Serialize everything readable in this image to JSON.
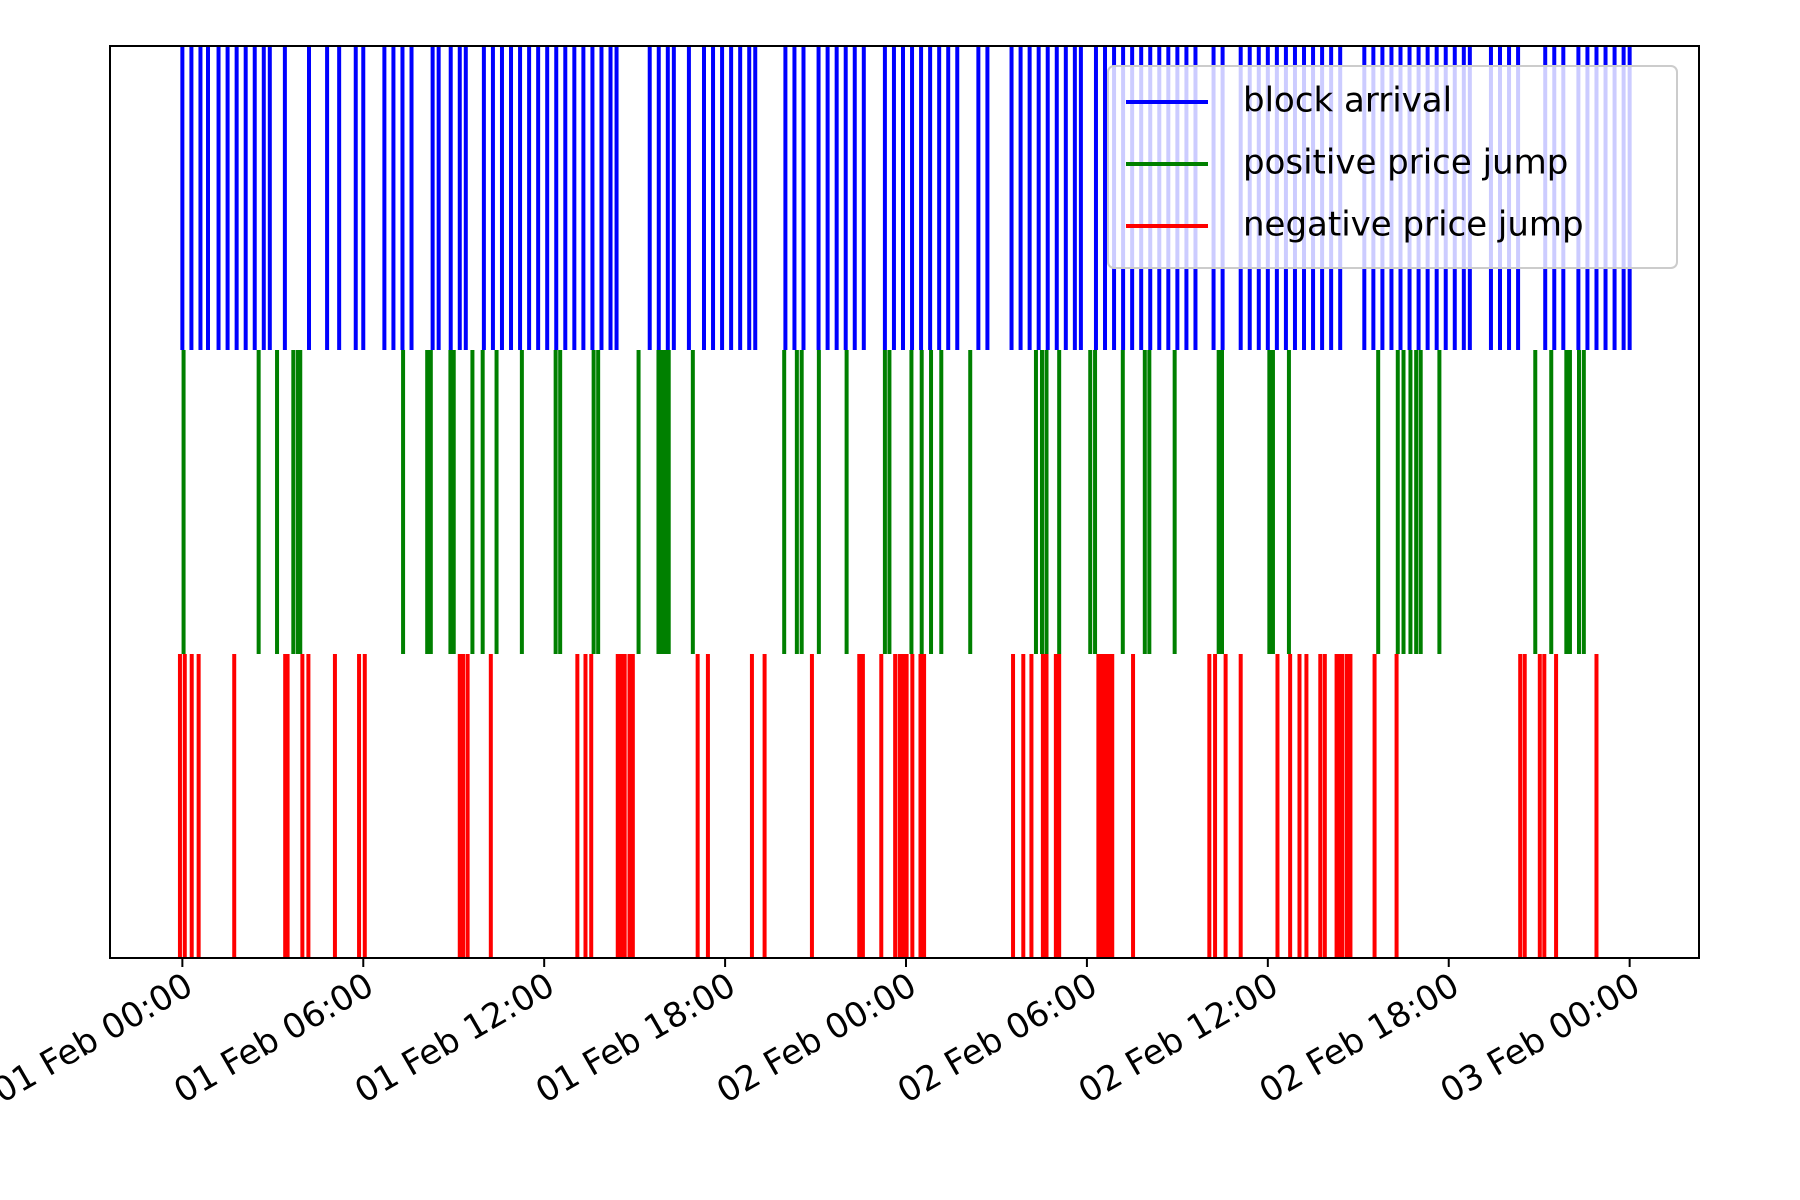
{
  "chart_data": {
    "type": "eventplot",
    "xlim": [
      -2.4,
      50.3
    ],
    "xticks": [
      {
        "value": 0,
        "label": "01 Feb 00:00"
      },
      {
        "value": 6,
        "label": "01 Feb 06:00"
      },
      {
        "value": 12,
        "label": "01 Feb 12:00"
      },
      {
        "value": 18,
        "label": "01 Feb 18:00"
      },
      {
        "value": 24,
        "label": "02 Feb 00:00"
      },
      {
        "value": 30,
        "label": "02 Feb 06:00"
      },
      {
        "value": 36,
        "label": "02 Feb 12:00"
      },
      {
        "value": 42,
        "label": "02 Feb 18:00"
      },
      {
        "value": 48,
        "label": "03 Feb 00:00"
      }
    ],
    "legend": "upper right",
    "series": [
      {
        "name": "block arrival",
        "color": "#0000ff",
        "values": [
          0,
          0.3,
          0.6,
          0.85,
          1.2,
          1.5,
          1.8,
          2.1,
          2.4,
          2.7,
          2.9,
          3.4,
          4.2,
          4.8,
          5.2,
          5.75,
          6.0,
          6.7,
          7.0,
          7.3,
          7.6,
          8.3,
          8.5,
          8.9,
          9.2,
          9.4,
          10.0,
          10.3,
          10.6,
          10.9,
          11.2,
          11.5,
          11.8,
          12.1,
          12.4,
          12.7,
          13.0,
          13.3,
          13.6,
          13.9,
          14.2,
          14.4,
          15.5,
          15.8,
          16.1,
          16.3,
          16.8,
          17.3,
          17.6,
          17.9,
          18.2,
          18.5,
          18.8,
          19.0,
          20.0,
          20.3,
          20.6,
          21.1,
          21.4,
          21.7,
          22.0,
          22.3,
          22.6,
          23.3,
          23.6,
          23.9,
          24.2,
          24.5,
          24.8,
          25.1,
          25.4,
          25.7,
          26.4,
          26.7,
          27.5,
          27.8,
          28.1,
          28.4,
          28.7,
          29.0,
          29.3,
          29.6,
          29.8,
          30.3,
          30.6,
          30.9,
          31.2,
          31.5,
          31.8,
          32.1,
          32.4,
          32.7,
          33.0,
          33.3,
          33.6,
          34.2,
          34.5,
          35.1,
          35.4,
          35.7,
          36.0,
          36.3,
          36.6,
          36.9,
          37.2,
          37.5,
          37.8,
          38.1,
          38.4,
          39.2,
          39.5,
          39.8,
          40.1,
          40.4,
          40.7,
          41.0,
          41.3,
          41.6,
          41.9,
          42.2,
          42.5,
          42.7,
          43.4,
          43.7,
          44.0,
          44.3,
          45.2,
          45.5,
          45.8,
          46.3,
          46.6,
          46.9,
          47.2,
          47.5,
          47.8,
          48.0
        ]
      },
      {
        "name": "positive price jump",
        "color": "#008000",
        "values": [
          0.04,
          2.53,
          3.14,
          3.68,
          3.83,
          3.91,
          7.32,
          8.12,
          8.24,
          8.89,
          9.0,
          9.62,
          9.96,
          10.42,
          11.26,
          12.38,
          12.53,
          13.64,
          13.79,
          15.13,
          15.79,
          15.9,
          16.02,
          16.13,
          16.93,
          19.96,
          20.38,
          20.54,
          21.11,
          22.03,
          23.3,
          23.45,
          24.18,
          24.52,
          24.83,
          25.17,
          26.13,
          28.31,
          28.51,
          28.66,
          29.08,
          30.11,
          30.27,
          31.19,
          31.92,
          32.07,
          32.91,
          34.37,
          34.48,
          36.05,
          36.17,
          36.7,
          39.66,
          40.31,
          40.5,
          40.73,
          40.92,
          41.07,
          41.69,
          44.87,
          45.4,
          45.9,
          46.02,
          46.32,
          46.48
        ]
      },
      {
        "name": "negative price jump",
        "color": "#ff0000",
        "values": [
          -0.08,
          0.08,
          0.31,
          0.54,
          1.72,
          3.41,
          3.49,
          3.98,
          4.18,
          5.06,
          5.86,
          6.05,
          9.2,
          9.31,
          9.46,
          10.23,
          13.1,
          13.37,
          13.56,
          14.44,
          14.56,
          14.67,
          14.83,
          14.94,
          17.09,
          17.43,
          18.89,
          19.31,
          20.88,
          22.45,
          22.57,
          23.18,
          23.64,
          23.79,
          23.91,
          24.02,
          24.21,
          24.48,
          24.6,
          27.55,
          27.89,
          28.16,
          28.54,
          28.66,
          28.97,
          29.08,
          30.38,
          30.5,
          30.61,
          30.73,
          30.84,
          31.53,
          34.06,
          34.25,
          34.6,
          35.1,
          36.32,
          36.74,
          37.05,
          37.28,
          37.74,
          37.89,
          38.28,
          38.35,
          38.47,
          38.62,
          38.74,
          39.54,
          40.27,
          44.37,
          44.52,
          45.02,
          45.17,
          45.56,
          46.9
        ]
      }
    ]
  }
}
